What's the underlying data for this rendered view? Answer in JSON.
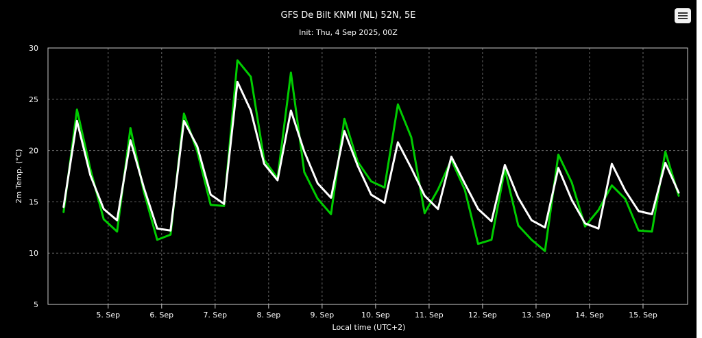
{
  "chart_data": {
    "type": "line",
    "title": "GFS De Bilt KNMI (NL) 52N, 5E",
    "subtitle": "Init: Thu, 4 Sep 2025, 00Z",
    "xlabel": "Local time (UTC+2)",
    "ylabel": "2m Temp. (°C)",
    "ylim": [
      5,
      30
    ],
    "yticks": [
      "5",
      "10",
      "15",
      "20",
      "25",
      "30"
    ],
    "xticks": [
      "5. Sep",
      "6. Sep",
      "7. Sep",
      "8. Sep",
      "9. Sep",
      "10. Sep",
      "11. Sep",
      "12. Sep",
      "13. Sep",
      "14. Sep",
      "15. Sep"
    ],
    "grid": true,
    "x_hours": [
      0,
      6,
      12,
      18,
      24,
      30,
      36,
      42,
      48,
      54,
      60,
      66,
      72,
      78,
      84,
      90,
      96,
      102,
      108,
      114,
      120,
      126,
      132,
      138,
      144,
      150,
      156,
      162,
      168,
      174,
      180,
      186,
      192,
      198,
      204,
      210,
      216,
      222,
      228,
      234,
      240,
      246,
      252,
      258,
      264,
      270,
      276
    ],
    "series": [
      {
        "color": "#00cc00",
        "values": [
          14.0,
          24.0,
          18.2,
          13.3,
          12.1,
          22.2,
          16.0,
          11.3,
          11.8,
          23.6,
          19.9,
          14.7,
          14.6,
          28.8,
          27.2,
          19.1,
          17.3,
          27.6,
          17.9,
          15.3,
          13.8,
          23.1,
          18.9,
          17.0,
          16.4,
          24.5,
          21.3,
          13.9,
          16.2,
          19.1,
          16.2,
          10.9,
          11.3,
          18.2,
          12.7,
          11.3,
          10.2,
          19.6,
          16.9,
          12.6,
          14.2,
          16.6,
          15.3,
          12.2,
          12.1,
          19.9,
          15.6
        ]
      },
      {
        "color": "#ffffff",
        "values": [
          14.5,
          22.9,
          17.6,
          14.3,
          13.2,
          21.0,
          16.4,
          12.4,
          12.2,
          22.9,
          20.4,
          15.7,
          14.8,
          26.7,
          23.9,
          18.7,
          17.1,
          23.9,
          19.9,
          16.8,
          15.4,
          21.9,
          18.5,
          15.7,
          14.9,
          20.8,
          18.3,
          15.6,
          14.3,
          19.4,
          16.8,
          14.3,
          13.1,
          18.6,
          15.4,
          13.2,
          12.5,
          18.3,
          15.2,
          12.9,
          12.4,
          18.7,
          16.1,
          14.1,
          13.8,
          18.8,
          15.9
        ]
      }
    ]
  },
  "icons": {
    "menu": "hamburger-menu-icon"
  },
  "colors": {
    "background": "#000000",
    "grid": "#666666",
    "axis": "#cccccc",
    "text": "#ffffff"
  }
}
